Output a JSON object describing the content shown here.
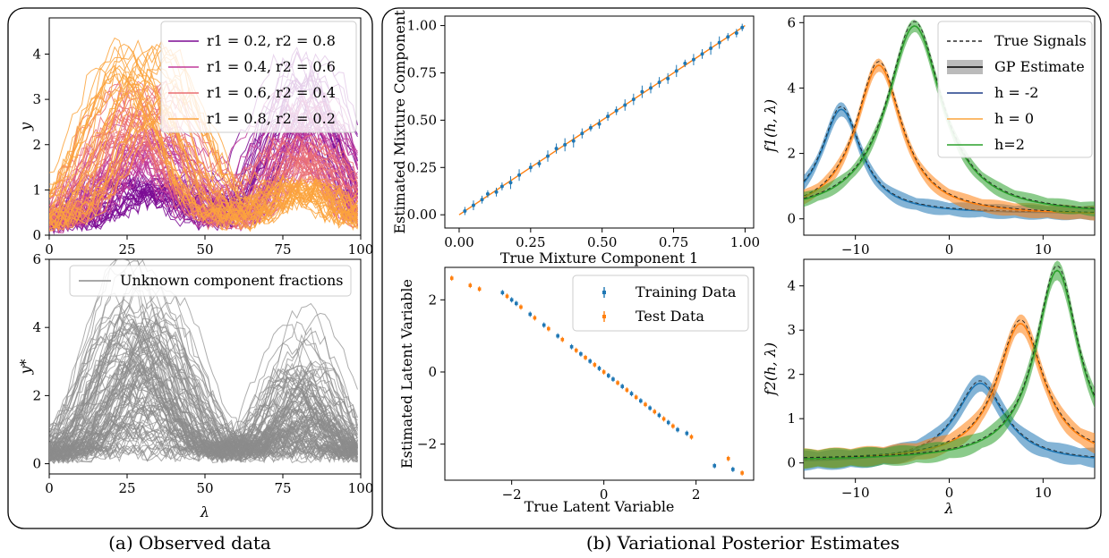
{
  "captions": {
    "a": "(a) Observed data",
    "b": "(b) Variational Posterior Estimates"
  },
  "chart_data": [
    {
      "id": "observed",
      "type": "line",
      "xlabel": "",
      "ylabel": "y",
      "xlim": [
        0,
        100
      ],
      "ylim": [
        0,
        4.8
      ],
      "xticks": [
        0,
        25,
        50,
        75,
        100
      ],
      "yticks": [
        0,
        1,
        2,
        3,
        4
      ],
      "grid": false,
      "legend_position": "top-right",
      "series": [
        {
          "name": "r1 = 0.2, r2 = 0.8",
          "color": "#7b0a94",
          "r1": 0.2
        },
        {
          "name": "r1 = 0.4, r2 = 0.6",
          "color": "#c03a9a",
          "r1": 0.4
        },
        {
          "name": "r1 = 0.6, r2 = 0.4",
          "color": "#ea6f73",
          "r1": 0.6
        },
        {
          "name": "r1 = 0.8, r2 = 0.2",
          "color": "#fba33c",
          "r1": 0.8
        }
      ],
      "components": {
        "peak1_x": 30,
        "peak1_width": 12,
        "peak1_amp": 4.0,
        "peak2_x": 82,
        "peak2_width": 10,
        "peak2_amp": 3.6
      }
    },
    {
      "id": "unknown",
      "type": "line",
      "xlabel": "λ",
      "ylabel": "y*",
      "xlim": [
        0,
        100
      ],
      "ylim": [
        -0.3,
        6.0
      ],
      "xticks": [
        0,
        25,
        50,
        75,
        100
      ],
      "yticks": [
        0,
        2,
        4,
        6
      ],
      "grid": false,
      "legend_position": "top-right",
      "series": [
        {
          "name": "Unknown component fractions",
          "color": "#8c8c8c"
        }
      ]
    },
    {
      "id": "mixture",
      "type": "scatter",
      "xlabel": "True Mixture Component 1",
      "ylabel": "Estimated Mixture Component",
      "xlim": [
        -0.05,
        1.03
      ],
      "ylim": [
        -0.07,
        1.05
      ],
      "xticks": [
        0.0,
        0.25,
        0.5,
        0.75,
        1.0
      ],
      "xtick_labels": [
        "0.00",
        "0.25",
        "0.50",
        "0.75",
        "1.00"
      ],
      "yticks": [
        0.0,
        0.25,
        0.5,
        0.75,
        1.0
      ],
      "ytick_labels": [
        "0.00",
        "0.25",
        "0.50",
        "0.75",
        "1.00"
      ],
      "grid": false,
      "identity_line": {
        "x": [
          0,
          1
        ],
        "y": [
          0,
          1
        ],
        "color": "#ff7f0e"
      },
      "points": [
        {
          "x": 0.02,
          "y": 0.02
        },
        {
          "x": 0.05,
          "y": 0.05
        },
        {
          "x": 0.08,
          "y": 0.08
        },
        {
          "x": 0.1,
          "y": 0.11
        },
        {
          "x": 0.13,
          "y": 0.12
        },
        {
          "x": 0.15,
          "y": 0.15
        },
        {
          "x": 0.18,
          "y": 0.17
        },
        {
          "x": 0.21,
          "y": 0.21
        },
        {
          "x": 0.25,
          "y": 0.25
        },
        {
          "x": 0.28,
          "y": 0.27
        },
        {
          "x": 0.31,
          "y": 0.31
        },
        {
          "x": 0.34,
          "y": 0.35
        },
        {
          "x": 0.37,
          "y": 0.37
        },
        {
          "x": 0.4,
          "y": 0.39
        },
        {
          "x": 0.43,
          "y": 0.43
        },
        {
          "x": 0.46,
          "y": 0.46
        },
        {
          "x": 0.49,
          "y": 0.48
        },
        {
          "x": 0.52,
          "y": 0.52
        },
        {
          "x": 0.55,
          "y": 0.55
        },
        {
          "x": 0.58,
          "y": 0.58
        },
        {
          "x": 0.61,
          "y": 0.61
        },
        {
          "x": 0.64,
          "y": 0.65
        },
        {
          "x": 0.67,
          "y": 0.67
        },
        {
          "x": 0.7,
          "y": 0.7
        },
        {
          "x": 0.73,
          "y": 0.72
        },
        {
          "x": 0.76,
          "y": 0.76
        },
        {
          "x": 0.79,
          "y": 0.8
        },
        {
          "x": 0.82,
          "y": 0.82
        },
        {
          "x": 0.85,
          "y": 0.85
        },
        {
          "x": 0.88,
          "y": 0.88
        },
        {
          "x": 0.91,
          "y": 0.91
        },
        {
          "x": 0.94,
          "y": 0.94
        },
        {
          "x": 0.97,
          "y": 0.96
        },
        {
          "x": 0.99,
          "y": 0.99
        }
      ],
      "point_color": "#1f77b4"
    },
    {
      "id": "latent",
      "type": "scatter",
      "xlabel": "True Latent Variable",
      "ylabel": "Estimated Latent Variable",
      "xlim": [
        -3.45,
        3.25
      ],
      "ylim": [
        -3.0,
        2.9
      ],
      "xticks": [
        -2,
        0,
        2
      ],
      "yticks": [
        -2,
        0,
        2
      ],
      "grid": false,
      "legend_position": "top-right",
      "series": [
        {
          "name": "Training Data",
          "color": "#1f77b4",
          "points": [
            [
              -2.2,
              2.2
            ],
            [
              -2.0,
              2.0
            ],
            [
              -1.9,
              1.9
            ],
            [
              -1.6,
              1.6
            ],
            [
              -1.3,
              1.3
            ],
            [
              -1.0,
              1.0
            ],
            [
              -0.7,
              0.7
            ],
            [
              -0.5,
              0.5
            ],
            [
              -0.3,
              0.3
            ],
            [
              -0.1,
              0.1
            ],
            [
              0.1,
              -0.1
            ],
            [
              0.2,
              -0.2
            ],
            [
              0.4,
              -0.4
            ],
            [
              0.6,
              -0.6
            ],
            [
              0.8,
              -0.8
            ],
            [
              1.0,
              -1.0
            ],
            [
              1.2,
              -1.2
            ],
            [
              1.4,
              -1.4
            ],
            [
              1.6,
              -1.6
            ],
            [
              1.8,
              -1.7
            ],
            [
              2.4,
              -2.6
            ],
            [
              2.8,
              -2.7
            ]
          ]
        },
        {
          "name": "Test Data",
          "color": "#ff7f0e",
          "points": [
            [
              -3.3,
              2.6
            ],
            [
              -2.9,
              2.4
            ],
            [
              -2.7,
              2.3
            ],
            [
              -2.1,
              2.1
            ],
            [
              -1.8,
              1.8
            ],
            [
              -1.5,
              1.5
            ],
            [
              -1.2,
              1.2
            ],
            [
              -0.9,
              0.9
            ],
            [
              -0.6,
              0.6
            ],
            [
              -0.4,
              0.4
            ],
            [
              -0.2,
              0.2
            ],
            [
              0.0,
              0.0
            ],
            [
              0.3,
              -0.3
            ],
            [
              0.5,
              -0.5
            ],
            [
              0.7,
              -0.7
            ],
            [
              0.9,
              -0.9
            ],
            [
              1.1,
              -1.1
            ],
            [
              1.3,
              -1.3
            ],
            [
              1.5,
              -1.5
            ],
            [
              1.9,
              -1.8
            ],
            [
              2.7,
              -2.4
            ],
            [
              3.0,
              -2.8
            ]
          ]
        }
      ]
    },
    {
      "id": "f1",
      "type": "line",
      "xlabel": "",
      "ylabel": "f1(h, λ)",
      "xlim": [
        -15.5,
        15.5
      ],
      "ylim": [
        -0.5,
        6.2
      ],
      "xticks": [
        -10,
        0,
        10
      ],
      "yticks": [
        0,
        2,
        4,
        6
      ],
      "grid": false,
      "legend_position": "top-right",
      "legend": [
        {
          "name": "True Signals",
          "style": "dashed",
          "color": "#000000"
        },
        {
          "name": "GP Estimate",
          "style": "band",
          "color": "#000000"
        },
        {
          "name": "h = -2",
          "color": "#1f3c88"
        },
        {
          "name": "h = 0",
          "color": "#fba33c"
        },
        {
          "name": "h=2",
          "color": "#2ca02c"
        }
      ],
      "series": [
        {
          "h": -2,
          "color": "#1f77b4",
          "center": -11.5,
          "width": 2.6,
          "amp": 3.2,
          "base": 0.15
        },
        {
          "h": 0,
          "color": "#ff7f0e",
          "center": -7.5,
          "width": 3.0,
          "amp": 4.6,
          "base": 0.1
        },
        {
          "h": 2,
          "color": "#2ca02c",
          "center": -3.7,
          "width": 3.6,
          "amp": 5.8,
          "base": 0.1
        }
      ]
    },
    {
      "id": "f2",
      "type": "line",
      "xlabel": "λ",
      "ylabel": "f2(h, λ)",
      "xlim": [
        -15.5,
        15.5
      ],
      "ylim": [
        -0.35,
        4.6
      ],
      "xticks": [
        -10,
        0,
        10
      ],
      "yticks": [
        0,
        1,
        2,
        3,
        4
      ],
      "grid": false,
      "series": [
        {
          "h": -2,
          "color": "#1f77b4",
          "center": 3.3,
          "width": 3.2,
          "amp": 1.8,
          "base": 0.0
        },
        {
          "h": 0,
          "color": "#ff7f0e",
          "center": 7.6,
          "width": 3.0,
          "amp": 3.1,
          "base": 0.05
        },
        {
          "h": 2,
          "color": "#2ca02c",
          "center": 11.5,
          "width": 2.8,
          "amp": 4.3,
          "base": 0.05
        }
      ]
    }
  ]
}
